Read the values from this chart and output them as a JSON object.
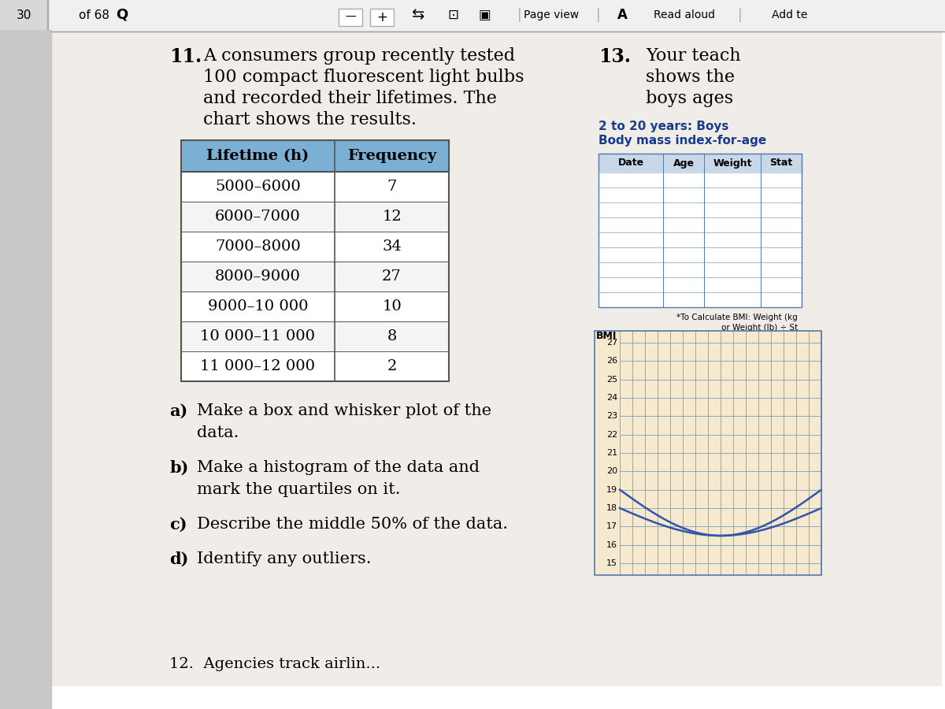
{
  "question_text_lines": [
    "A consumers group recently tested",
    "100 compact fluorescent light bulbs",
    "and recorded their lifetimes. The",
    "chart shows the results."
  ],
  "table_headers": [
    "Lifetime (h)",
    "Frequency"
  ],
  "table_rows": [
    [
      "5000–6000",
      "7"
    ],
    [
      "6000–7000",
      "12"
    ],
    [
      "7000–8000",
      "34"
    ],
    [
      "8000–9000",
      "27"
    ],
    [
      "9000–10 000",
      "10"
    ],
    [
      "10 000–11 000",
      "8"
    ],
    [
      "11 000–12 000",
      "2"
    ]
  ],
  "sub_questions": [
    [
      "a)",
      "Make a box and whisker plot of the",
      "data."
    ],
    [
      "b)",
      "Make a histogram of the data and",
      "mark the quartiles on it."
    ],
    [
      "c)",
      "Describe the middle 50% of the data."
    ],
    [
      "d)",
      "Identify any outliers."
    ]
  ],
  "right_num": "13.",
  "right_lines": [
    "Your teach",
    "shows the",
    "boys ages"
  ],
  "right_sub1": "2 to 20 years: Boys",
  "right_sub2": "Body mass index-for-age",
  "right_note": "*To Calculate BMI: Weight (kg\nor Weight (lb) ÷ St",
  "right_table_headers": [
    "Date",
    "Age",
    "Weight",
    "Stat"
  ],
  "bmi_label": "BMI",
  "bmi_values": [
    "27",
    "26",
    "25",
    "24",
    "23",
    "22",
    "21",
    "20",
    "19",
    "18",
    "17",
    "16",
    "15"
  ],
  "footer_text": "12.  Agencies track airlin...",
  "bg_color": "#ffffff",
  "page_bg": "#f0ede8",
  "table_header_bg": "#7bafd4",
  "table_border_color": "#555555",
  "right_panel_bg": "#f5e9d0",
  "right_grid_color": "#7a9fc0",
  "right_table_bg": "#f5e9d0",
  "toolbar_bg": "#f0f0f0"
}
